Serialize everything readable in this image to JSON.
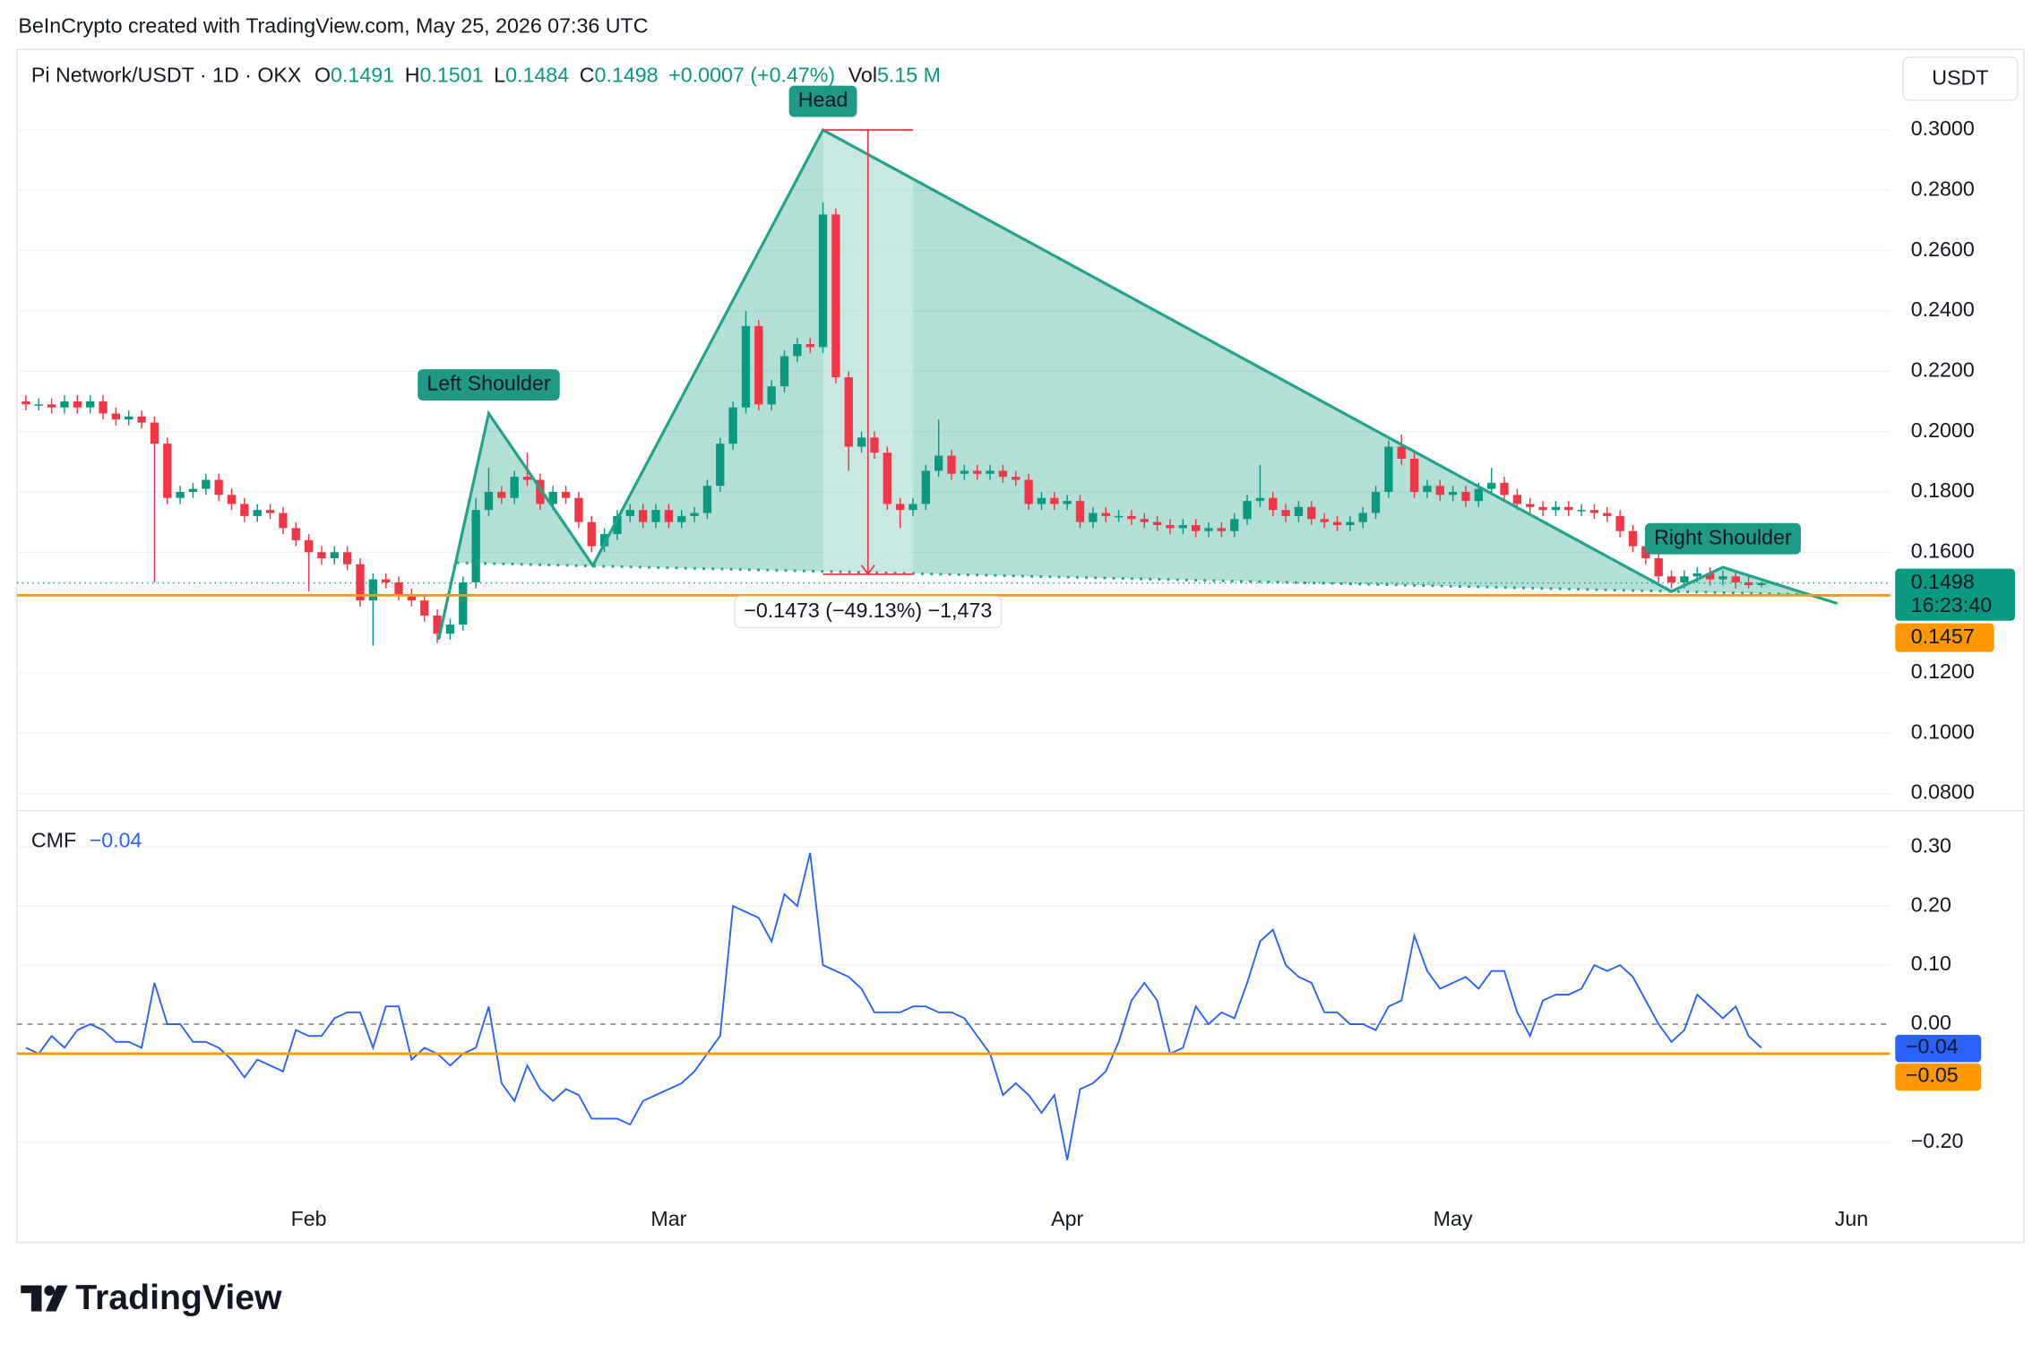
{
  "caption": "BeInCrypto created with TradingView.com, May 25, 2026 07:36 UTC",
  "brand": "TradingView",
  "chart_data": [
    {
      "type": "candlestick",
      "title": "Pi Network/USDT · 1D · OKX",
      "currency": "USDT",
      "ohlc_labels": [
        "O",
        "H",
        "L",
        "C"
      ],
      "change": "+0.0007 (+0.47%)",
      "volume_label": "Vol",
      "volume": "5.15 M",
      "countdown": "16:23:40",
      "up_color": "#089981",
      "down_color": "#f23645",
      "xlim": [
        -0.7,
        145
      ],
      "xticks": [
        {
          "value": 22,
          "label": "Feb"
        },
        {
          "value": 50,
          "label": "Mar"
        },
        {
          "value": 81,
          "label": "Apr"
        },
        {
          "value": 111,
          "label": "May"
        },
        {
          "value": 142,
          "label": "Jun"
        }
      ],
      "ylim": [
        0.0748,
        0.3267
      ],
      "yticks": [
        {
          "value": 0.3,
          "label": "0.3000"
        },
        {
          "value": 0.28,
          "label": "0.2800"
        },
        {
          "value": 0.26,
          "label": "0.2600"
        },
        {
          "value": 0.24,
          "label": "0.2400"
        },
        {
          "value": 0.22,
          "label": "0.2200"
        },
        {
          "value": 0.2,
          "label": "0.2000"
        },
        {
          "value": 0.18,
          "label": "0.1800"
        },
        {
          "value": 0.16,
          "label": "0.1600"
        },
        {
          "value": 0.12,
          "label": "0.1200"
        },
        {
          "value": 0.1,
          "label": "0.1000"
        },
        {
          "value": 0.08,
          "label": "0.0800"
        }
      ],
      "grid": true,
      "hline": 0.1457,
      "hline_color": "#ff9800",
      "pattern": {
        "x": [
          32.1,
          36,
          44.1,
          62,
          128,
          132,
          140.9
        ],
        "y": [
          0.131,
          0.206,
          0.1556,
          0.3,
          0.147,
          0.155,
          0.143
        ],
        "color": "#22a38a"
      },
      "neckline": {
        "x": [
          33.5,
          138
        ],
        "y": [
          0.1565,
          0.146
        ]
      },
      "annotations": [
        "Left Shoulder",
        "Head",
        "Right Shoulder"
      ],
      "measure": {
        "x": [
          62,
          69
        ],
        "y": [
          0.3,
          0.1527
        ],
        "label": "−0.1473 (−49.13%) −1,473",
        "color": "#f23645"
      },
      "candles": [
        [
          0.21,
          0.212,
          0.207,
          0.209
        ],
        [
          0.209,
          0.211,
          0.207,
          0.209
        ],
        [
          0.209,
          0.211,
          0.206,
          0.208
        ],
        [
          0.208,
          0.212,
          0.206,
          0.21
        ],
        [
          0.21,
          0.212,
          0.206,
          0.208
        ],
        [
          0.208,
          0.212,
          0.206,
          0.21
        ],
        [
          0.21,
          0.212,
          0.204,
          0.206
        ],
        [
          0.206,
          0.208,
          0.202,
          0.204
        ],
        [
          0.204,
          0.207,
          0.202,
          0.205
        ],
        [
          0.205,
          0.207,
          0.201,
          0.203
        ],
        [
          0.203,
          0.205,
          0.15,
          0.196
        ],
        [
          0.196,
          0.198,
          0.176,
          0.178
        ],
        [
          0.178,
          0.182,
          0.176,
          0.18
        ],
        [
          0.18,
          0.183,
          0.178,
          0.181
        ],
        [
          0.181,
          0.186,
          0.179,
          0.184
        ],
        [
          0.184,
          0.186,
          0.177,
          0.179
        ],
        [
          0.179,
          0.181,
          0.174,
          0.176
        ],
        [
          0.176,
          0.178,
          0.17,
          0.172
        ],
        [
          0.172,
          0.176,
          0.17,
          0.174
        ],
        [
          0.174,
          0.176,
          0.171,
          0.173
        ],
        [
          0.173,
          0.175,
          0.166,
          0.168
        ],
        [
          0.168,
          0.17,
          0.162,
          0.164
        ],
        [
          0.164,
          0.166,
          0.147,
          0.16
        ],
        [
          0.16,
          0.162,
          0.156,
          0.158
        ],
        [
          0.158,
          0.162,
          0.156,
          0.16
        ],
        [
          0.16,
          0.162,
          0.154,
          0.156
        ],
        [
          0.156,
          0.158,
          0.142,
          0.144
        ],
        [
          0.144,
          0.153,
          0.129,
          0.151
        ],
        [
          0.151,
          0.153,
          0.148,
          0.15
        ],
        [
          0.15,
          0.152,
          0.144,
          0.146
        ],
        [
          0.146,
          0.148,
          0.142,
          0.144
        ],
        [
          0.144,
          0.146,
          0.137,
          0.139
        ],
        [
          0.139,
          0.141,
          0.13,
          0.133
        ],
        [
          0.133,
          0.138,
          0.131,
          0.136
        ],
        [
          0.136,
          0.152,
          0.134,
          0.15
        ],
        [
          0.15,
          0.178,
          0.148,
          0.174
        ],
        [
          0.174,
          0.188,
          0.172,
          0.18
        ],
        [
          0.18,
          0.182,
          0.176,
          0.178
        ],
        [
          0.178,
          0.187,
          0.176,
          0.185
        ],
        [
          0.185,
          0.193,
          0.182,
          0.184
        ],
        [
          0.184,
          0.186,
          0.174,
          0.176
        ],
        [
          0.176,
          0.182,
          0.174,
          0.18
        ],
        [
          0.18,
          0.182,
          0.176,
          0.178
        ],
        [
          0.178,
          0.18,
          0.168,
          0.17
        ],
        [
          0.17,
          0.172,
          0.16,
          0.162
        ],
        [
          0.162,
          0.168,
          0.16,
          0.166
        ],
        [
          0.166,
          0.174,
          0.164,
          0.172
        ],
        [
          0.172,
          0.176,
          0.17,
          0.174
        ],
        [
          0.174,
          0.176,
          0.168,
          0.17
        ],
        [
          0.17,
          0.176,
          0.168,
          0.174
        ],
        [
          0.174,
          0.176,
          0.168,
          0.17
        ],
        [
          0.17,
          0.174,
          0.168,
          0.172
        ],
        [
          0.172,
          0.175,
          0.17,
          0.173
        ],
        [
          0.173,
          0.184,
          0.171,
          0.182
        ],
        [
          0.182,
          0.198,
          0.18,
          0.196
        ],
        [
          0.196,
          0.21,
          0.194,
          0.208
        ],
        [
          0.208,
          0.24,
          0.206,
          0.235
        ],
        [
          0.235,
          0.237,
          0.207,
          0.209
        ],
        [
          0.209,
          0.217,
          0.207,
          0.215
        ],
        [
          0.215,
          0.227,
          0.213,
          0.225
        ],
        [
          0.225,
          0.231,
          0.223,
          0.229
        ],
        [
          0.229,
          0.231,
          0.226,
          0.228
        ],
        [
          0.228,
          0.276,
          0.226,
          0.272
        ],
        [
          0.272,
          0.274,
          0.216,
          0.218
        ],
        [
          0.218,
          0.22,
          0.187,
          0.195
        ],
        [
          0.195,
          0.2,
          0.193,
          0.198
        ],
        [
          0.198,
          0.2,
          0.191,
          0.193
        ],
        [
          0.193,
          0.195,
          0.174,
          0.176
        ],
        [
          0.176,
          0.178,
          0.168,
          0.174
        ],
        [
          0.174,
          0.178,
          0.172,
          0.176
        ],
        [
          0.176,
          0.189,
          0.174,
          0.187
        ],
        [
          0.187,
          0.204,
          0.185,
          0.192
        ],
        [
          0.192,
          0.194,
          0.184,
          0.186
        ],
        [
          0.186,
          0.189,
          0.184,
          0.187
        ],
        [
          0.187,
          0.189,
          0.184,
          0.186
        ],
        [
          0.186,
          0.189,
          0.184,
          0.187
        ],
        [
          0.187,
          0.189,
          0.183,
          0.185
        ],
        [
          0.185,
          0.187,
          0.182,
          0.184
        ],
        [
          0.184,
          0.186,
          0.174,
          0.176
        ],
        [
          0.176,
          0.18,
          0.174,
          0.178
        ],
        [
          0.178,
          0.18,
          0.174,
          0.176
        ],
        [
          0.176,
          0.179,
          0.174,
          0.177
        ],
        [
          0.177,
          0.179,
          0.168,
          0.17
        ],
        [
          0.17,
          0.175,
          0.168,
          0.173
        ],
        [
          0.173,
          0.175,
          0.17,
          0.172
        ],
        [
          0.172,
          0.174,
          0.17,
          0.172
        ],
        [
          0.172,
          0.174,
          0.169,
          0.171
        ],
        [
          0.171,
          0.173,
          0.168,
          0.17
        ],
        [
          0.17,
          0.172,
          0.167,
          0.169
        ],
        [
          0.169,
          0.171,
          0.166,
          0.168
        ],
        [
          0.168,
          0.171,
          0.166,
          0.169
        ],
        [
          0.169,
          0.171,
          0.165,
          0.167
        ],
        [
          0.167,
          0.17,
          0.165,
          0.168
        ],
        [
          0.168,
          0.17,
          0.165,
          0.167
        ],
        [
          0.167,
          0.173,
          0.165,
          0.171
        ],
        [
          0.171,
          0.179,
          0.169,
          0.177
        ],
        [
          0.177,
          0.189,
          0.175,
          0.178
        ],
        [
          0.178,
          0.18,
          0.172,
          0.174
        ],
        [
          0.174,
          0.176,
          0.17,
          0.172
        ],
        [
          0.172,
          0.177,
          0.17,
          0.175
        ],
        [
          0.175,
          0.177,
          0.169,
          0.171
        ],
        [
          0.171,
          0.173,
          0.168,
          0.17
        ],
        [
          0.17,
          0.172,
          0.167,
          0.169
        ],
        [
          0.169,
          0.172,
          0.167,
          0.17
        ],
        [
          0.17,
          0.175,
          0.168,
          0.173
        ],
        [
          0.173,
          0.182,
          0.171,
          0.18
        ],
        [
          0.18,
          0.197,
          0.178,
          0.195
        ],
        [
          0.195,
          0.199,
          0.189,
          0.191
        ],
        [
          0.191,
          0.193,
          0.178,
          0.18
        ],
        [
          0.18,
          0.184,
          0.178,
          0.182
        ],
        [
          0.182,
          0.184,
          0.177,
          0.179
        ],
        [
          0.179,
          0.182,
          0.177,
          0.18
        ],
        [
          0.18,
          0.182,
          0.175,
          0.177
        ],
        [
          0.177,
          0.183,
          0.175,
          0.181
        ],
        [
          0.181,
          0.188,
          0.179,
          0.183
        ],
        [
          0.183,
          0.185,
          0.177,
          0.179
        ],
        [
          0.179,
          0.181,
          0.174,
          0.176
        ],
        [
          0.176,
          0.178,
          0.173,
          0.175
        ],
        [
          0.175,
          0.177,
          0.172,
          0.174
        ],
        [
          0.174,
          0.177,
          0.172,
          0.175
        ],
        [
          0.175,
          0.177,
          0.172,
          0.174
        ],
        [
          0.174,
          0.176,
          0.172,
          0.174
        ],
        [
          0.174,
          0.176,
          0.171,
          0.173
        ],
        [
          0.173,
          0.175,
          0.17,
          0.172
        ],
        [
          0.172,
          0.174,
          0.165,
          0.167
        ],
        [
          0.167,
          0.169,
          0.16,
          0.162
        ],
        [
          0.162,
          0.164,
          0.156,
          0.158
        ],
        [
          0.158,
          0.16,
          0.15,
          0.152
        ],
        [
          0.152,
          0.154,
          0.148,
          0.15
        ],
        [
          0.15,
          0.154,
          0.148,
          0.152
        ],
        [
          0.152,
          0.155,
          0.15,
          0.153
        ],
        [
          0.153,
          0.155,
          0.149,
          0.151
        ],
        [
          0.151,
          0.154,
          0.149,
          0.152
        ],
        [
          0.152,
          0.154,
          0.148,
          0.15
        ],
        [
          0.15,
          0.152,
          0.148,
          0.1491
        ],
        [
          0.1491,
          0.1501,
          0.1484,
          0.1498
        ]
      ]
    },
    {
      "type": "line",
      "title": "CMF",
      "color": "#2962ff",
      "last_label": "−0.04",
      "hline": {
        "value": -0.05,
        "label": "−0.05"
      },
      "hline_color": "#ff9800",
      "ylim": [
        -0.288,
        0.3595
      ],
      "yticks": [
        {
          "value": 0.3,
          "label": "0.30"
        },
        {
          "value": 0.2,
          "label": "0.20"
        },
        {
          "value": 0.1,
          "label": "0.10"
        },
        {
          "value": 0,
          "label": "0.00"
        },
        {
          "value": -0.2,
          "label": "−0.20"
        }
      ],
      "values": [
        -0.04,
        -0.05,
        -0.02,
        -0.04,
        -0.01,
        0.0,
        -0.01,
        -0.03,
        -0.03,
        -0.04,
        0.07,
        0.0,
        0.0,
        -0.03,
        -0.03,
        -0.04,
        -0.06,
        -0.09,
        -0.06,
        -0.07,
        -0.08,
        -0.01,
        -0.02,
        -0.02,
        0.01,
        0.02,
        0.02,
        -0.04,
        0.03,
        0.03,
        -0.06,
        -0.04,
        -0.05,
        -0.07,
        -0.05,
        -0.04,
        0.03,
        -0.1,
        -0.13,
        -0.07,
        -0.11,
        -0.13,
        -0.11,
        -0.12,
        -0.16,
        -0.16,
        -0.16,
        -0.17,
        -0.13,
        -0.12,
        -0.11,
        -0.1,
        -0.08,
        -0.05,
        -0.02,
        0.2,
        0.19,
        0.18,
        0.14,
        0.22,
        0.2,
        0.29,
        0.1,
        0.09,
        0.08,
        0.06,
        0.02,
        0.02,
        0.02,
        0.03,
        0.03,
        0.02,
        0.02,
        0.01,
        -0.02,
        -0.05,
        -0.12,
        -0.1,
        -0.12,
        -0.15,
        -0.12,
        -0.23,
        -0.11,
        -0.1,
        -0.08,
        -0.03,
        0.04,
        0.07,
        0.04,
        -0.05,
        -0.04,
        0.03,
        0.0,
        0.02,
        0.01,
        0.07,
        0.14,
        0.16,
        0.1,
        0.08,
        0.07,
        0.02,
        0.02,
        0.0,
        0.0,
        -0.01,
        0.03,
        0.04,
        0.15,
        0.09,
        0.06,
        0.07,
        0.08,
        0.06,
        0.09,
        0.09,
        0.02,
        -0.02,
        0.04,
        0.05,
        0.05,
        0.06,
        0.1,
        0.09,
        0.1,
        0.08,
        0.04,
        0.0,
        -0.03,
        -0.01,
        0.05,
        0.03,
        0.01,
        0.03,
        -0.02,
        -0.04
      ]
    }
  ]
}
